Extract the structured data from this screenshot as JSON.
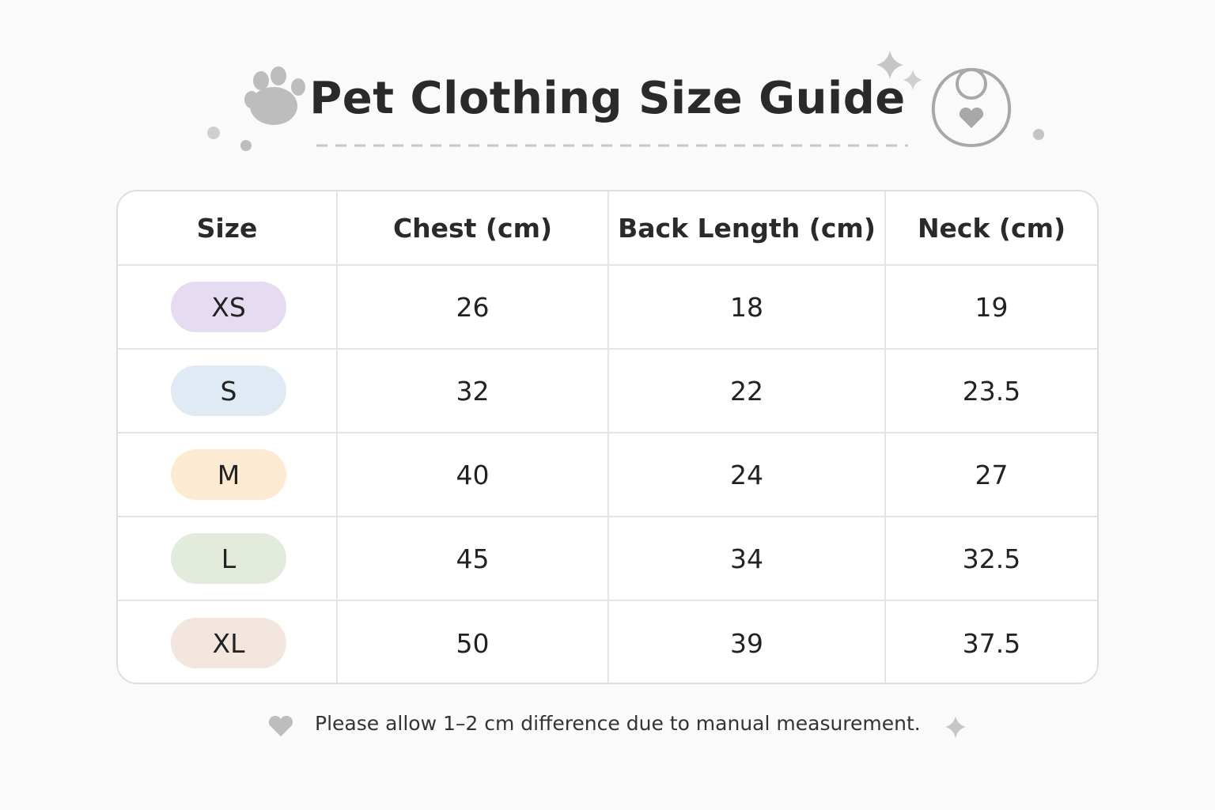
{
  "title": "Pet Clothing Size Guide",
  "table": {
    "header": [
      "Size",
      "Chest (cm)",
      "Back Length (cm)",
      "Neck (cm)"
    ],
    "rows": [
      [
        "XS",
        26,
        18,
        19
      ],
      [
        "S",
        32,
        22,
        23.5
      ],
      [
        "M",
        40,
        24,
        27
      ],
      [
        "L",
        45,
        34,
        32.5
      ],
      [
        "XL",
        50,
        39,
        37.5
      ]
    ]
  },
  "note": "Please allow 1–2 cm difference due to manual measurement."
}
